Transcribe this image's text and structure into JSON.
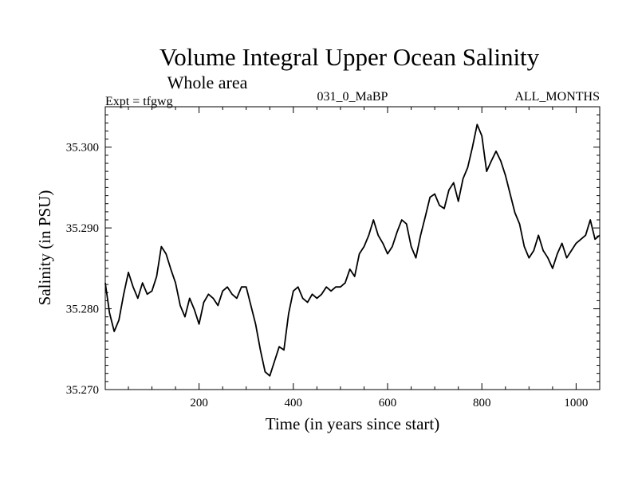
{
  "chart_data": {
    "type": "line",
    "title": "Volume Integral Upper Ocean Salinity",
    "subtitle": "Whole area",
    "experiment_label": "Expt = tfgwg",
    "run_label": "031_0_MaBP",
    "months_label": "ALL_MONTHS",
    "xlabel": "Time (in years since start)",
    "ylabel": "Salinity (in PSU)",
    "xlim": [
      1,
      1050
    ],
    "ylim": [
      35.27,
      35.305
    ],
    "x_ticks": [
      200,
      400,
      600,
      800,
      1000
    ],
    "x_tick_labels": [
      "200",
      "400",
      "600",
      "800",
      "1000"
    ],
    "y_ticks": [
      35.27,
      35.28,
      35.29,
      35.3
    ],
    "y_tick_labels": [
      "35.270",
      "35.280",
      "35.290",
      "35.300"
    ],
    "line_color": "#000000",
    "series": [
      {
        "name": "Salinity",
        "x": [
          1,
          10,
          20,
          30,
          40,
          50,
          60,
          70,
          80,
          90,
          100,
          110,
          120,
          130,
          140,
          150,
          160,
          170,
          180,
          190,
          200,
          210,
          220,
          230,
          240,
          250,
          260,
          270,
          280,
          290,
          300,
          310,
          320,
          330,
          340,
          350,
          360,
          370,
          380,
          390,
          400,
          410,
          420,
          430,
          440,
          450,
          460,
          470,
          480,
          490,
          500,
          510,
          520,
          530,
          540,
          550,
          560,
          570,
          580,
          590,
          600,
          610,
          620,
          630,
          640,
          650,
          660,
          670,
          680,
          690,
          700,
          710,
          720,
          730,
          740,
          750,
          760,
          770,
          780,
          790,
          800,
          810,
          820,
          830,
          840,
          850,
          860,
          870,
          880,
          890,
          900,
          910,
          920,
          930,
          940,
          950,
          960,
          970,
          980,
          990,
          1000,
          1010,
          1020,
          1030,
          1040,
          1050
        ],
        "values": [
          35.2832,
          35.2795,
          35.2772,
          35.2786,
          35.2818,
          35.2845,
          35.2827,
          35.2813,
          35.2832,
          35.2818,
          35.2822,
          35.284,
          35.2877,
          35.2868,
          35.2849,
          35.2832,
          35.2804,
          35.279,
          35.2813,
          35.2799,
          35.2781,
          35.2808,
          35.2818,
          35.2813,
          35.2804,
          35.2822,
          35.2827,
          35.2818,
          35.2813,
          35.2827,
          35.2827,
          35.2804,
          35.2781,
          35.2749,
          35.2722,
          35.2717,
          35.2735,
          35.2753,
          35.2749,
          35.2794,
          35.2822,
          35.2827,
          35.2813,
          35.2808,
          35.2818,
          35.2813,
          35.2818,
          35.2827,
          35.2822,
          35.2827,
          35.2827,
          35.2832,
          35.2849,
          35.284,
          35.2868,
          35.2877,
          35.2891,
          35.291,
          35.2891,
          35.2881,
          35.2868,
          35.2877,
          35.2895,
          35.291,
          35.2905,
          35.2877,
          35.2863,
          35.2891,
          35.2914,
          35.2938,
          35.2942,
          35.2928,
          35.2924,
          35.2947,
          35.2956,
          35.2933,
          35.2961,
          35.2975,
          35.3,
          35.3028,
          35.3014,
          35.297,
          35.2983,
          35.2995,
          35.2983,
          35.2965,
          35.2942,
          35.2919,
          35.2905,
          35.2877,
          35.2863,
          35.2872,
          35.2891,
          35.2872,
          35.2863,
          35.285,
          35.2868,
          35.2881,
          35.2863,
          35.2872,
          35.2881,
          35.2886,
          35.2891,
          35.291,
          35.2886,
          35.2891
        ]
      }
    ]
  }
}
